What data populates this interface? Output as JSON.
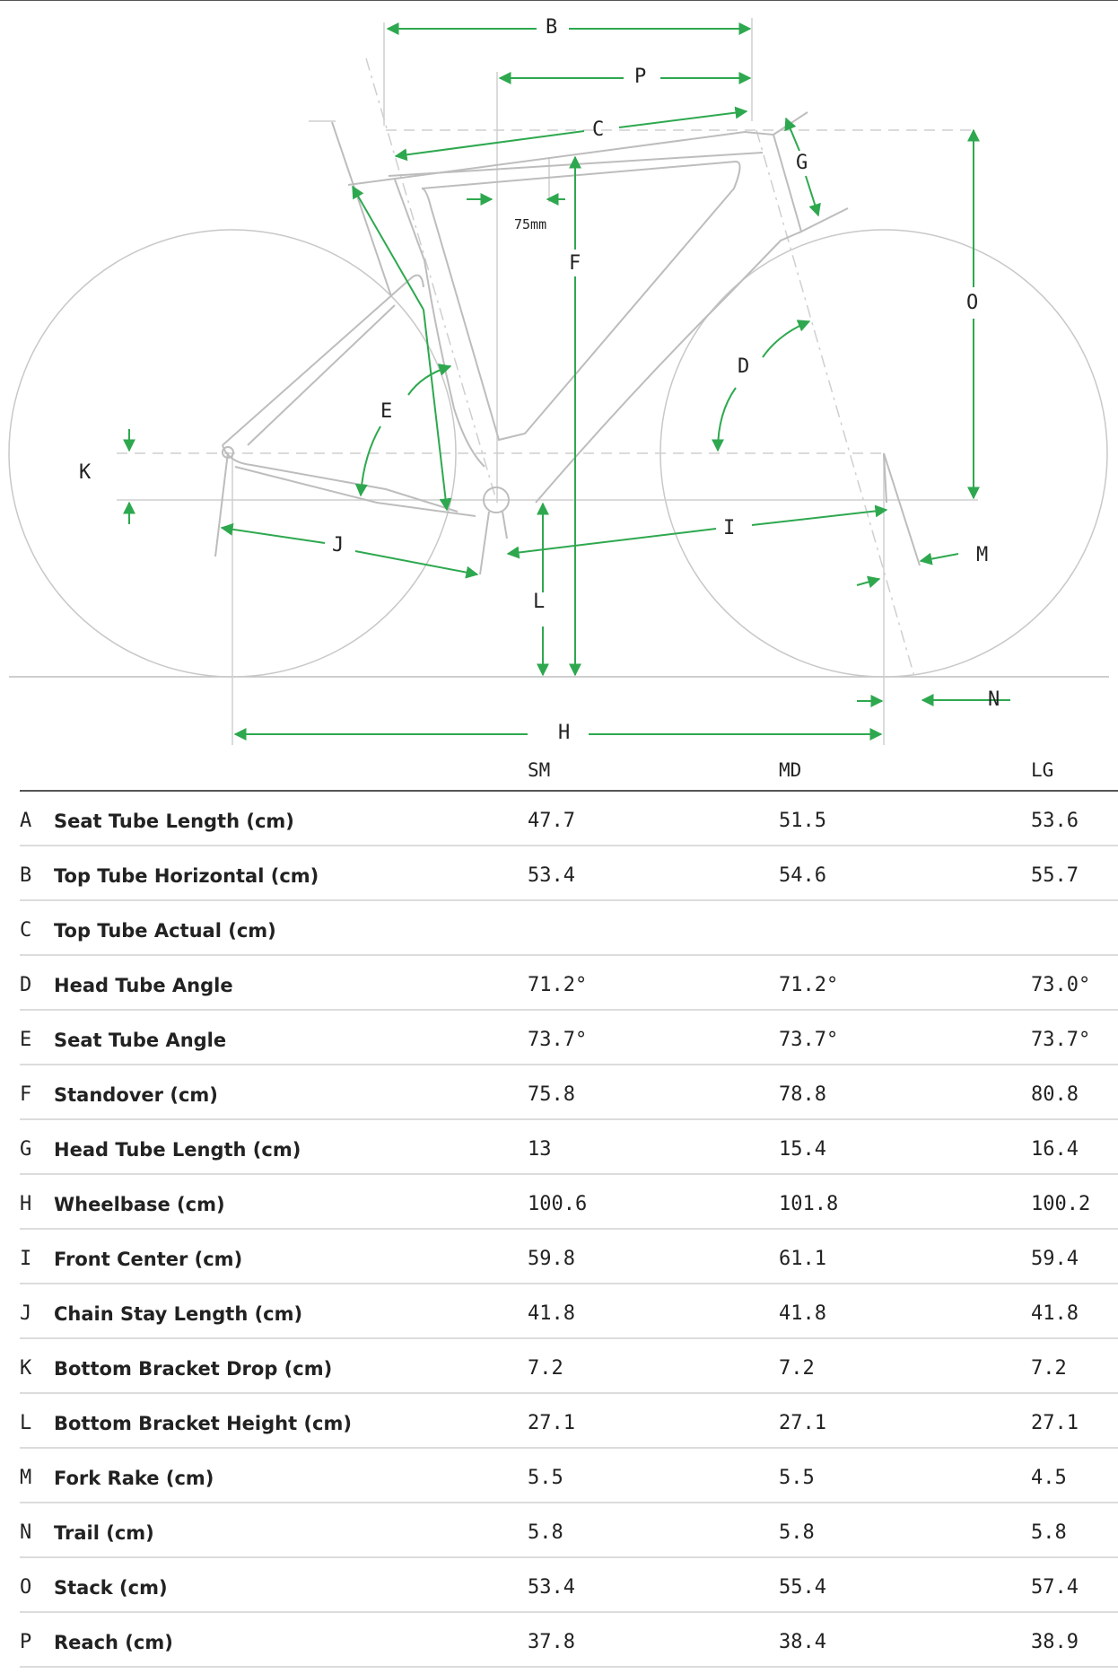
{
  "diagram": {
    "labels": {
      "A_mark": "",
      "B": "B",
      "P": "P",
      "C": "C",
      "G": "G",
      "O": "O",
      "F": "F",
      "D": "D",
      "E": "E",
      "K": "K",
      "J": "J",
      "I": "I",
      "L": "L",
      "M": "M",
      "N": "N",
      "H": "H",
      "note_75mm": "75mm"
    },
    "colors": {
      "arrow": "#2ea84f",
      "frame": "#bdbdbd",
      "dash": "#cfcfcf"
    }
  },
  "table": {
    "columns": [
      "SM",
      "MD",
      "LG"
    ],
    "rows": [
      {
        "letter": "A",
        "name": "Seat Tube Length (cm)",
        "values": [
          "47.7",
          "51.5",
          "53.6"
        ]
      },
      {
        "letter": "B",
        "name": "Top Tube Horizontal (cm)",
        "values": [
          "53.4",
          "54.6",
          "55.7"
        ]
      },
      {
        "letter": "C",
        "name": "Top Tube Actual (cm)",
        "values": [
          "",
          "",
          ""
        ]
      },
      {
        "letter": "D",
        "name": "Head Tube Angle",
        "values": [
          "71.2°",
          "71.2°",
          "73.0°"
        ]
      },
      {
        "letter": "E",
        "name": "Seat Tube Angle",
        "values": [
          "73.7°",
          "73.7°",
          "73.7°"
        ]
      },
      {
        "letter": "F",
        "name": "Standover (cm)",
        "values": [
          "75.8",
          "78.8",
          "80.8"
        ]
      },
      {
        "letter": "G",
        "name": "Head Tube Length (cm)",
        "values": [
          "13",
          "15.4",
          "16.4"
        ]
      },
      {
        "letter": "H",
        "name": "Wheelbase (cm)",
        "values": [
          "100.6",
          "101.8",
          "100.2"
        ]
      },
      {
        "letter": "I",
        "name": "Front Center (cm)",
        "values": [
          "59.8",
          "61.1",
          "59.4"
        ]
      },
      {
        "letter": "J",
        "name": "Chain Stay Length (cm)",
        "values": [
          "41.8",
          "41.8",
          "41.8"
        ]
      },
      {
        "letter": "K",
        "name": "Bottom Bracket Drop (cm)",
        "values": [
          "7.2",
          "7.2",
          "7.2"
        ]
      },
      {
        "letter": "L",
        "name": "Bottom Bracket Height (cm)",
        "values": [
          "27.1",
          "27.1",
          "27.1"
        ]
      },
      {
        "letter": "M",
        "name": "Fork Rake (cm)",
        "values": [
          "5.5",
          "5.5",
          "4.5"
        ]
      },
      {
        "letter": "N",
        "name": "Trail (cm)",
        "values": [
          "5.8",
          "5.8",
          "5.8"
        ]
      },
      {
        "letter": "O",
        "name": "Stack (cm)",
        "values": [
          "53.4",
          "55.4",
          "57.4"
        ]
      },
      {
        "letter": "P",
        "name": "Reach (cm)",
        "values": [
          "37.8",
          "38.4",
          "38.9"
        ]
      }
    ]
  }
}
